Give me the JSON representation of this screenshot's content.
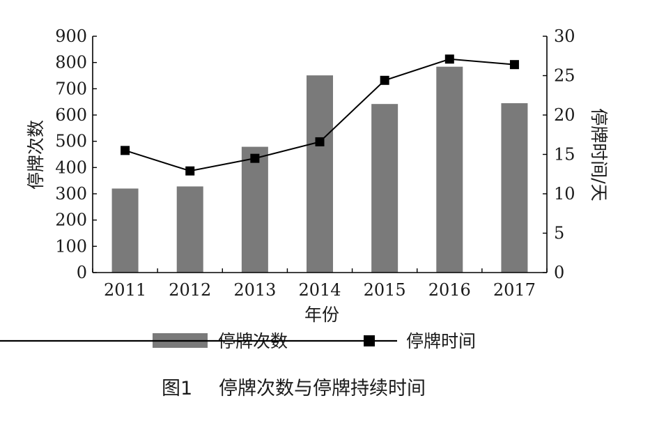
{
  "chart_data": {
    "type": "bar",
    "title": "",
    "caption_number": "图1",
    "caption_title": "停牌次数与停牌持续时间",
    "categories": [
      "2011",
      "2012",
      "2013",
      "2014",
      "2015",
      "2016",
      "2017"
    ],
    "xlabel": "年份",
    "ylabel_left": "停牌次数",
    "ylabel_right": "停牌时间/天",
    "ylim_left": [
      0,
      900
    ],
    "ylim_right": [
      0,
      30
    ],
    "yticks_left": [
      "0",
      "100",
      "200",
      "300",
      "400",
      "500",
      "600",
      "700",
      "800",
      "900"
    ],
    "yticks_right": [
      "0",
      "5",
      "10",
      "15",
      "20",
      "25",
      "30"
    ],
    "series": [
      {
        "name": "停牌次数",
        "type": "bar",
        "axis": "left",
        "color": "#7a7a7a",
        "values": [
          320,
          328,
          479,
          751,
          642,
          784,
          645
        ]
      },
      {
        "name": "停牌时间",
        "type": "line",
        "axis": "right",
        "color": "#000000",
        "marker": "square",
        "values": [
          15.5,
          12.9,
          14.5,
          16.6,
          24.4,
          27.1,
          26.4
        ]
      }
    ],
    "grid": false,
    "legend_position": "bottom"
  }
}
